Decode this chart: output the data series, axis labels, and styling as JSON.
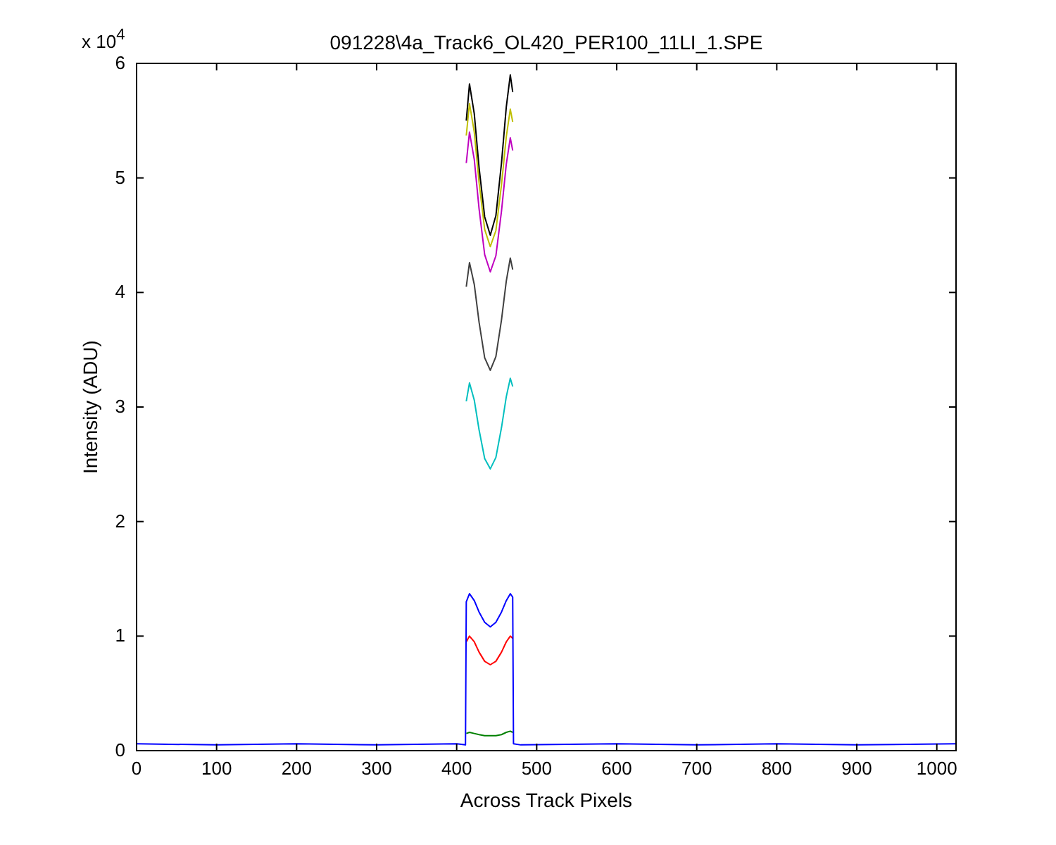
{
  "chart_data": {
    "type": "line",
    "title": "091228\\4a_Track6_OL420_PER100_11LI_1.SPE",
    "xlabel": "Across Track Pixels",
    "ylabel": "Intensity (ADU)",
    "annotations": [
      "x 10$^{4}$"
    ],
    "x": [
      0,
      100,
      200,
      300,
      400,
      411,
      412,
      416,
      422,
      428,
      435,
      442,
      449,
      456,
      462,
      467,
      470,
      471,
      480,
      600,
      700,
      800,
      900,
      1024
    ],
    "xlim": [
      0,
      1024
    ],
    "xticks": [
      0,
      100,
      200,
      300,
      400,
      500,
      600,
      700,
      800,
      900,
      1000
    ],
    "ylim": [
      0,
      6
    ],
    "yticks": [
      0,
      1,
      2,
      3,
      4,
      5,
      6
    ],
    "grid": false,
    "series": [
      {
        "color": "#008000",
        "values": [
          null,
          null,
          null,
          null,
          null,
          null,
          0.15,
          0.16,
          0.15,
          0.14,
          0.13,
          0.13,
          0.13,
          0.14,
          0.16,
          0.17,
          0.16,
          null,
          null,
          null,
          null,
          null,
          null,
          null
        ]
      },
      {
        "color": "#ff0000",
        "values": [
          null,
          null,
          null,
          null,
          null,
          null,
          0.95,
          1.0,
          0.95,
          0.86,
          0.78,
          0.75,
          0.78,
          0.86,
          0.95,
          1.0,
          0.98,
          null,
          null,
          null,
          null,
          null,
          null,
          null
        ]
      },
      {
        "color": "#00bfbf",
        "values": [
          null,
          null,
          null,
          null,
          null,
          null,
          3.05,
          3.21,
          3.06,
          2.8,
          2.55,
          2.46,
          2.56,
          2.82,
          3.09,
          3.25,
          3.18,
          null,
          null,
          null,
          null,
          null,
          null,
          null
        ]
      },
      {
        "color": "#404040",
        "values": [
          null,
          null,
          null,
          null,
          null,
          null,
          4.05,
          4.26,
          4.07,
          3.74,
          3.43,
          3.32,
          3.44,
          3.76,
          4.1,
          4.3,
          4.2,
          null,
          null,
          null,
          null,
          null,
          null,
          null
        ]
      },
      {
        "color": "#bf00bf",
        "values": [
          null,
          null,
          null,
          null,
          null,
          null,
          5.13,
          5.4,
          5.16,
          4.73,
          4.33,
          4.18,
          4.32,
          4.71,
          5.12,
          5.35,
          5.24,
          null,
          null,
          null,
          null,
          null,
          null,
          null
        ]
      },
      {
        "color": "#bfbf00",
        "values": [
          null,
          null,
          null,
          null,
          null,
          null,
          5.37,
          5.65,
          5.4,
          4.96,
          4.55,
          4.4,
          4.54,
          4.94,
          5.36,
          5.6,
          5.49,
          null,
          null,
          null,
          null,
          null,
          null,
          null
        ]
      },
      {
        "color": "#000000",
        "values": [
          null,
          null,
          null,
          null,
          null,
          null,
          5.5,
          5.82,
          5.56,
          5.09,
          4.66,
          4.5,
          4.67,
          5.13,
          5.62,
          5.9,
          5.75,
          null,
          null,
          null,
          null,
          null,
          null,
          null
        ]
      },
      {
        "color": "#0000ff",
        "values": [
          0.06,
          0.05,
          0.06,
          0.05,
          0.06,
          0.05,
          1.3,
          1.37,
          1.31,
          1.21,
          1.12,
          1.08,
          1.12,
          1.21,
          1.31,
          1.37,
          1.34,
          0.06,
          0.05,
          0.06,
          0.05,
          0.06,
          0.05,
          0.06
        ]
      }
    ]
  }
}
